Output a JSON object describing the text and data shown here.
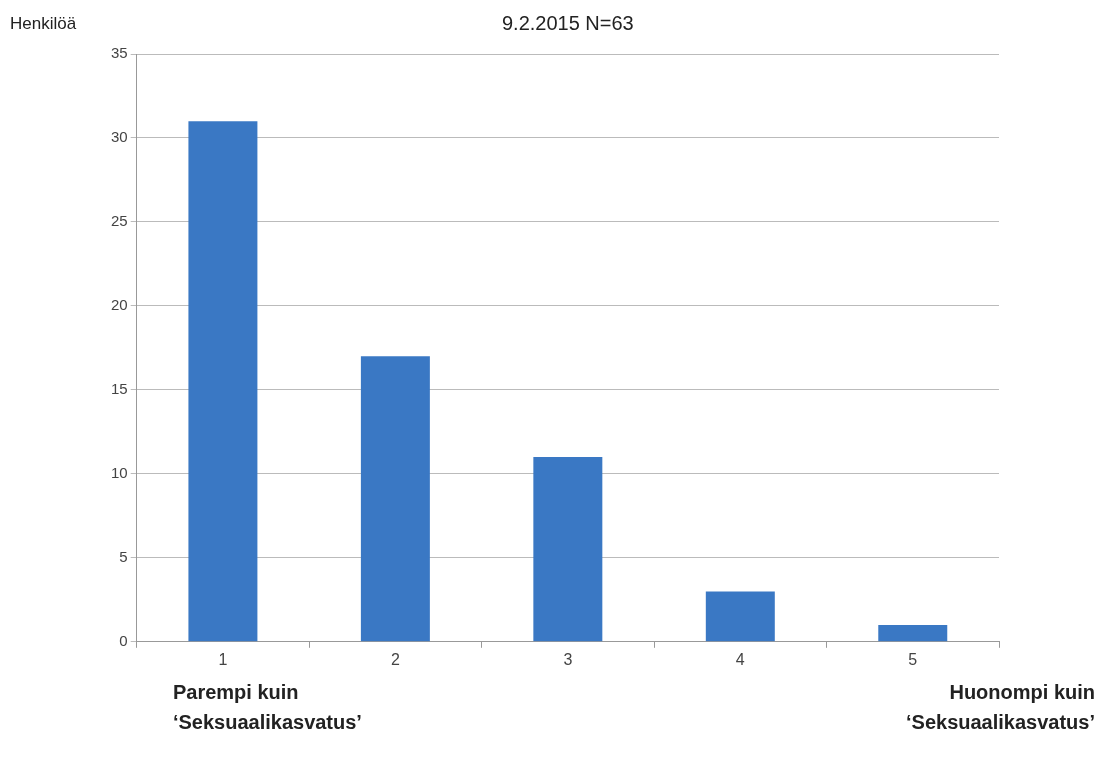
{
  "chart_data": {
    "type": "bar",
    "title": "9.2.2015 N=63",
    "ylabel": "Henkilöä",
    "categories": [
      "1",
      "2",
      "3",
      "4",
      "5"
    ],
    "values": [
      31,
      17,
      11,
      3,
      1
    ],
    "color": "#3a78c4",
    "ylim": [
      0,
      35
    ],
    "yticks": [
      0,
      5,
      10,
      15,
      20,
      25,
      30,
      35
    ],
    "grid": "y",
    "legend": false,
    "annotations": [
      "Parempi kuin\n‘Seksuaalikasvatus’",
      "Huonompi kuin\n‘Seksuaalikasvatus’"
    ]
  }
}
